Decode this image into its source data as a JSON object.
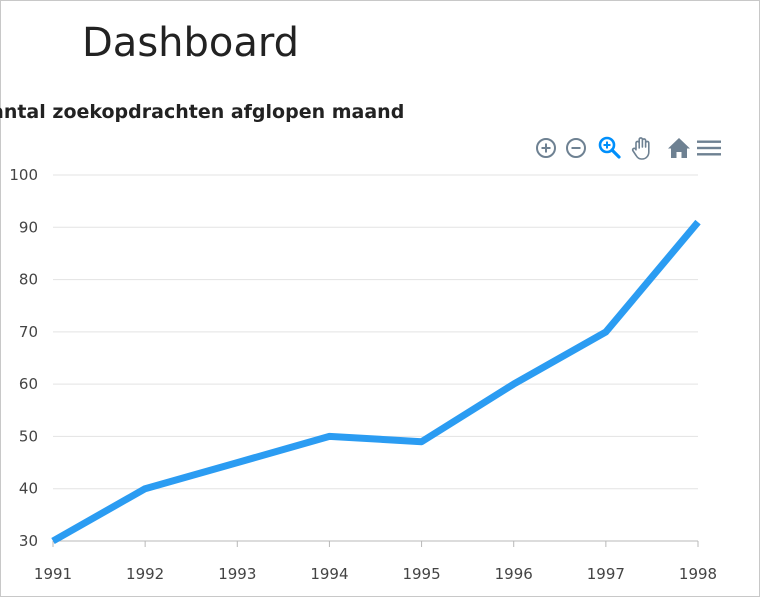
{
  "page": {
    "title": "Dashboard"
  },
  "toolbar": {
    "tools": [
      {
        "name": "zoom-in-icon",
        "color": "#6e8192"
      },
      {
        "name": "zoom-out-icon",
        "color": "#6e8192"
      },
      {
        "name": "selection-zoom-icon",
        "color": "#008ffb",
        "active": true
      },
      {
        "name": "pan-hand-icon",
        "color": "#6e8192"
      },
      {
        "name": "reset-home-icon",
        "color": "#6e8192"
      },
      {
        "name": "menu-icon",
        "color": "#6e8192"
      }
    ]
  },
  "chart_data": {
    "type": "line",
    "title": "antal zoekopdrachten afglopen maand",
    "categories": [
      "1991",
      "1992",
      "1993",
      "1994",
      "1995",
      "1996",
      "1997",
      "1998"
    ],
    "series": [
      {
        "values": [
          30,
          40,
          45,
          50,
          49,
          60,
          70,
          91
        ]
      }
    ],
    "ylim": [
      30,
      100
    ],
    "yticks": [
      30,
      40,
      50,
      60,
      70,
      80,
      90,
      100
    ],
    "grid": true,
    "legend": "none",
    "colors": {
      "line": "#2b9cf2",
      "grid": "#e3e3e3",
      "tick_text": "#444444",
      "axis": "#b8b8b8"
    }
  }
}
